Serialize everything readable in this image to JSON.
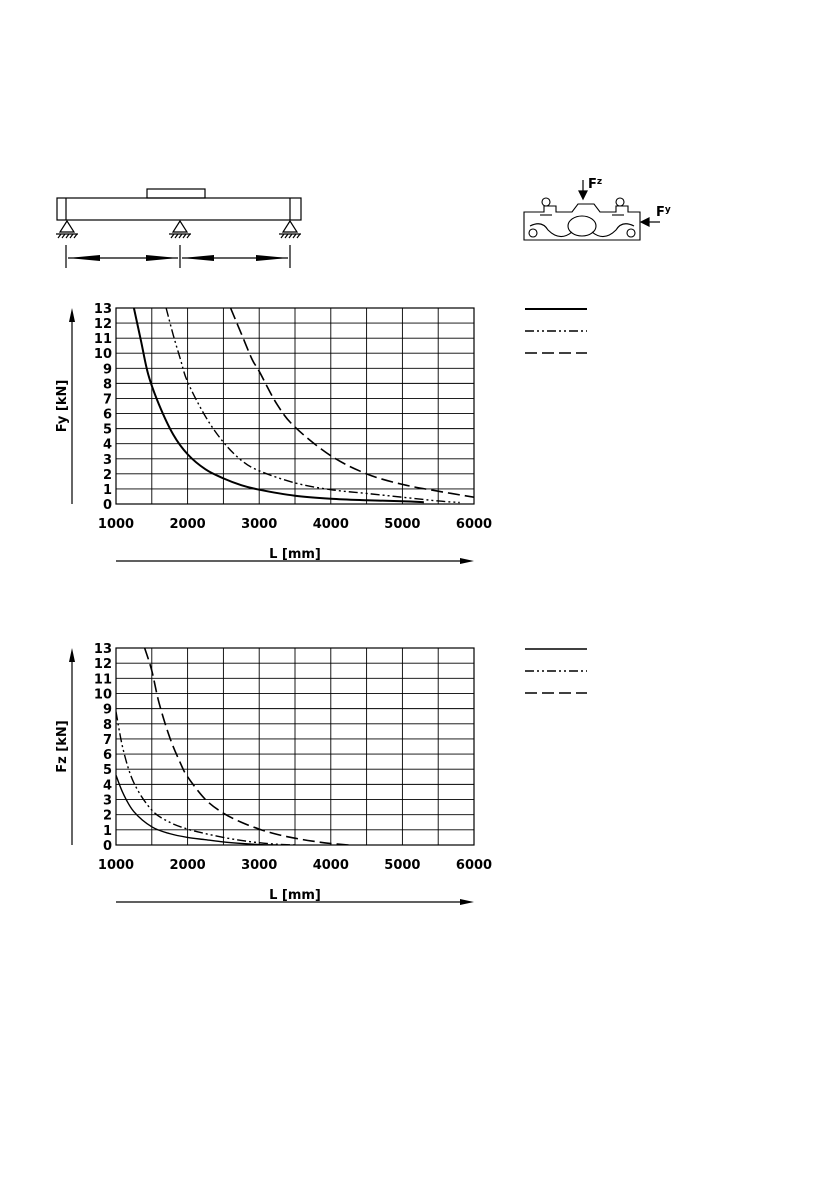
{
  "figure_labels": {
    "fz": "F",
    "fz_sub": "z",
    "fy": "F",
    "fy_sub": "y"
  },
  "chart_data": [
    {
      "type": "line",
      "xlabel": "L [mm]",
      "ylabel": "Fy [kN]",
      "xlim": [
        1000,
        6000
      ],
      "ylim": [
        0,
        13
      ],
      "xticks": [
        "1000",
        "2000",
        "3000",
        "4000",
        "5000",
        "6000"
      ],
      "yticks": [
        "0",
        "1",
        "2",
        "3",
        "4",
        "5",
        "6",
        "7",
        "8",
        "9",
        "10",
        "11",
        "12",
        "13"
      ],
      "grid": true,
      "legend": "right",
      "series": [
        {
          "style": "solid",
          "x": [
            1250,
            1350,
            1450,
            1600,
            1800,
            2000,
            2250,
            2500,
            2750,
            3000,
            3500,
            4000,
            4500,
            5000,
            5300
          ],
          "y": [
            13,
            10.8,
            8.6,
            6.6,
            4.6,
            3.3,
            2.3,
            1.7,
            1.25,
            0.95,
            0.55,
            0.35,
            0.25,
            0.18,
            0.12
          ]
        },
        {
          "style": "dash-dot-dot",
          "x": [
            1700,
            1800,
            1900,
            2000,
            2250,
            2500,
            2750,
            3000,
            3500,
            4000,
            4500,
            5000,
            5500,
            5800
          ],
          "y": [
            13,
            11.2,
            9.6,
            8.1,
            5.8,
            4.1,
            2.9,
            2.2,
            1.4,
            0.95,
            0.7,
            0.45,
            0.2,
            0.1
          ]
        },
        {
          "style": "dashed",
          "x": [
            2600,
            2750,
            2900,
            3000,
            3250,
            3500,
            4000,
            4500,
            5000,
            5500,
            6000
          ],
          "y": [
            13,
            11.3,
            9.6,
            8.8,
            6.6,
            5.1,
            3.2,
            2.0,
            1.3,
            0.85,
            0.45
          ]
        }
      ]
    },
    {
      "type": "line",
      "xlabel": "L [mm]",
      "ylabel": "Fz [kN]",
      "xlim": [
        1000,
        6000
      ],
      "ylim": [
        0,
        13
      ],
      "xticks": [
        "1000",
        "2000",
        "3000",
        "4000",
        "5000",
        "6000"
      ],
      "yticks": [
        "0",
        "1",
        "2",
        "3",
        "4",
        "5",
        "6",
        "7",
        "8",
        "9",
        "10",
        "11",
        "12",
        "13"
      ],
      "grid": true,
      "legend": "right",
      "series": [
        {
          "style": "thin-solid",
          "x": [
            1000,
            1100,
            1250,
            1500,
            1750,
            2000,
            2250,
            2500,
            2750,
            3000,
            3250
          ],
          "y": [
            4.6,
            3.4,
            2.2,
            1.2,
            0.75,
            0.5,
            0.35,
            0.2,
            0.1,
            0.03,
            0
          ]
        },
        {
          "style": "dash-dot-dot",
          "x": [
            1000,
            1100,
            1250,
            1500,
            1750,
            2000,
            2250,
            2500,
            2750,
            3000,
            3250,
            3500
          ],
          "y": [
            8.8,
            6.3,
            4.1,
            2.3,
            1.5,
            1.05,
            0.75,
            0.5,
            0.3,
            0.15,
            0.05,
            0
          ]
        },
        {
          "style": "dashed",
          "x": [
            1400,
            1500,
            1600,
            1750,
            1900,
            2000,
            2250,
            2500,
            2750,
            3000,
            3250,
            3500,
            3750,
            4000,
            4250
          ],
          "y": [
            13,
            11.5,
            9.4,
            7.1,
            5.4,
            4.5,
            3.0,
            2.1,
            1.5,
            1.05,
            0.7,
            0.45,
            0.25,
            0.1,
            0
          ]
        }
      ]
    }
  ]
}
